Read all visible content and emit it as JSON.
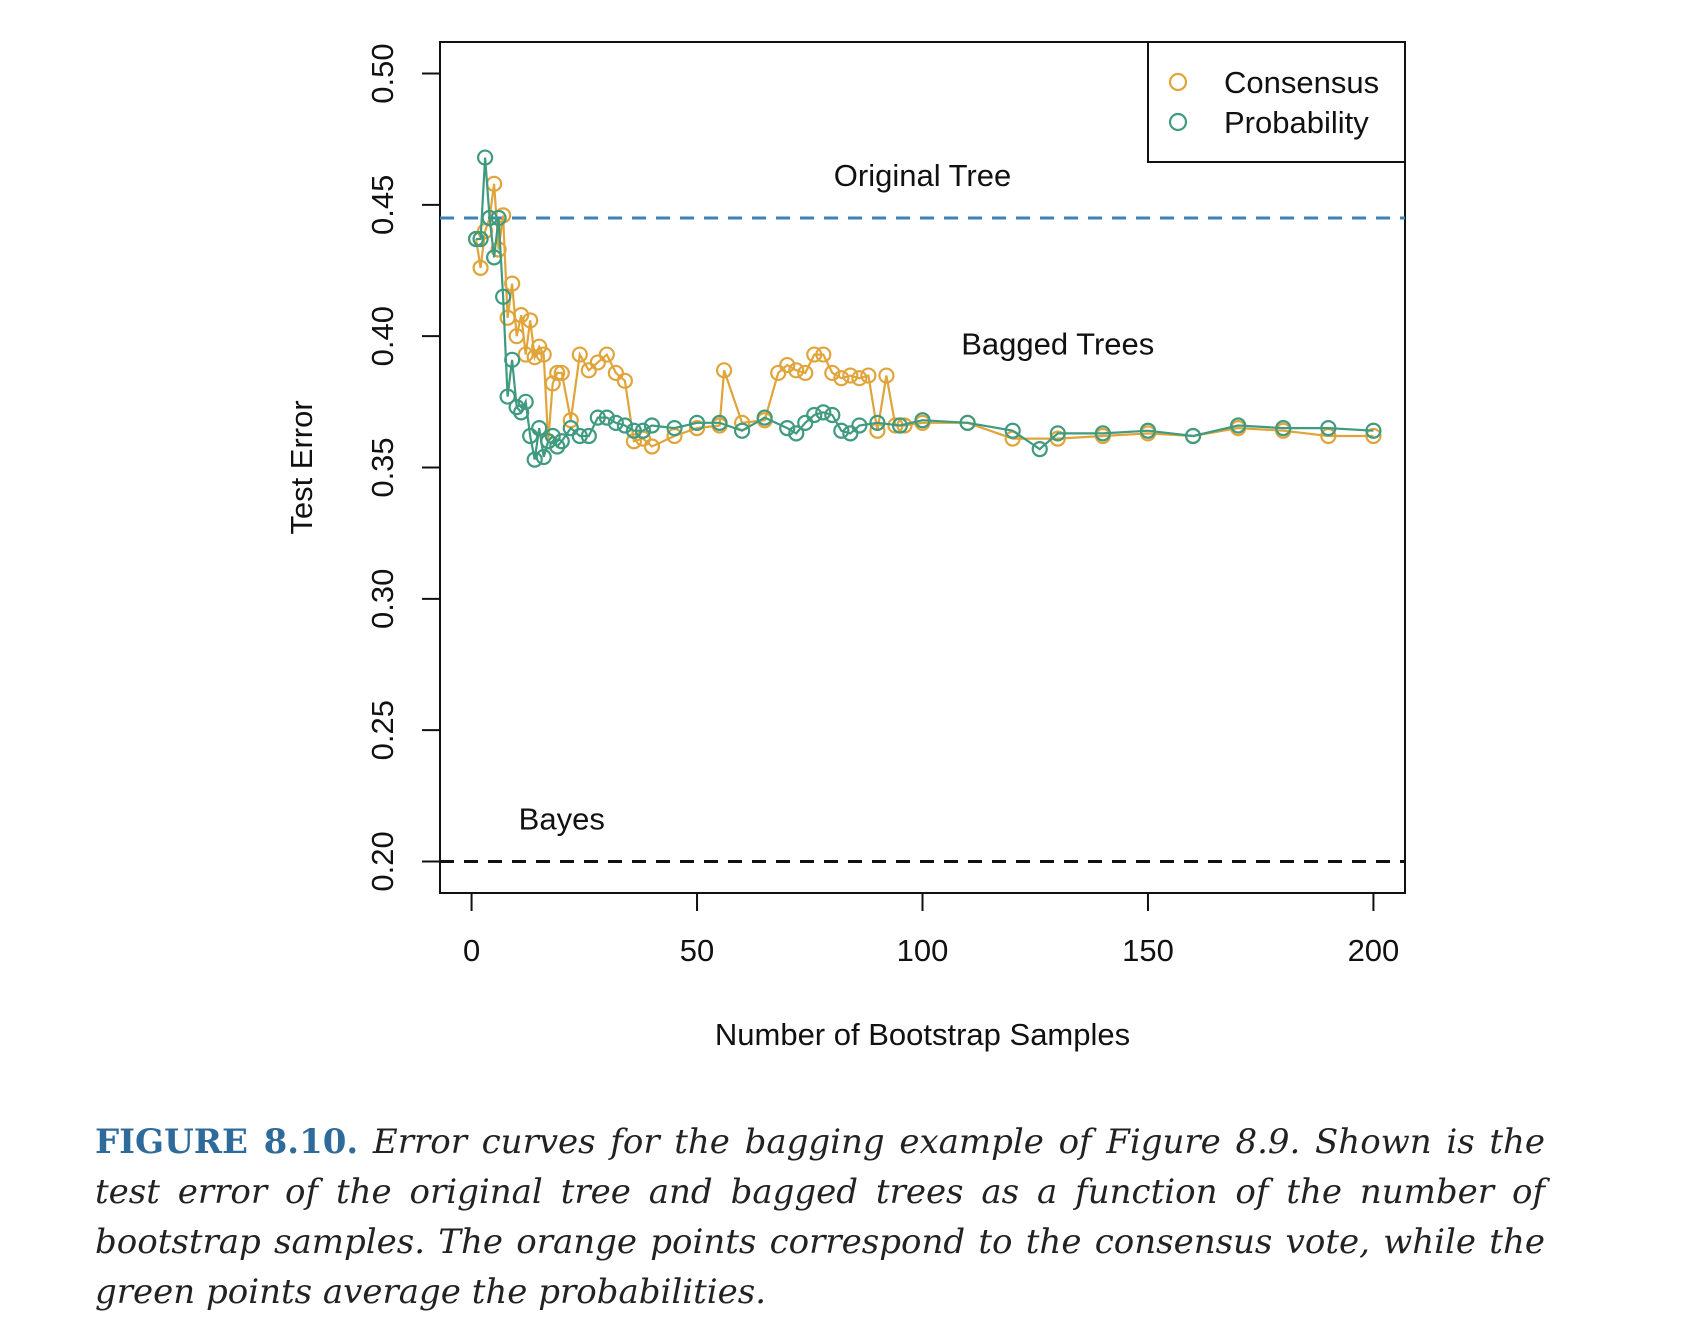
{
  "chart_data": {
    "type": "line",
    "xlabel": "Number of Bootstrap Samples",
    "ylabel": "Test Error",
    "xlim": [
      -7,
      207
    ],
    "ylim": [
      0.188,
      0.512
    ],
    "xticks": [
      0,
      50,
      100,
      150,
      200
    ],
    "xtick_labels": [
      "0",
      "50",
      "100",
      "150",
      "200"
    ],
    "yticks": [
      0.2,
      0.25,
      0.3,
      0.35,
      0.4,
      0.45,
      0.5
    ],
    "ytick_labels": [
      "0.20",
      "0.25",
      "0.30",
      "0.35",
      "0.40",
      "0.45",
      "0.50"
    ],
    "grid": false,
    "legend_position": "top-right",
    "reference_lines": [
      {
        "label": "Original Tree",
        "y": 0.445,
        "color": "#3b82b8",
        "style": "dashed"
      },
      {
        "label": "Bayes",
        "y": 0.2,
        "color": "#111111",
        "style": "dashed"
      }
    ],
    "annotations": [
      {
        "text": "Bagged Trees",
        "x": 130,
        "y": 0.393
      }
    ],
    "series": [
      {
        "name": "Consensus",
        "color": "#e0a43a",
        "x": [
          1,
          2,
          3,
          4,
          5,
          6,
          7,
          8,
          9,
          10,
          11,
          12,
          13,
          14,
          15,
          16,
          17,
          18,
          19,
          20,
          22,
          24,
          26,
          28,
          30,
          32,
          34,
          36,
          38,
          40,
          45,
          50,
          55,
          56,
          60,
          65,
          68,
          70,
          72,
          74,
          76,
          78,
          80,
          82,
          84,
          86,
          88,
          90,
          92,
          94,
          96,
          100,
          110,
          120,
          130,
          140,
          150,
          160,
          170,
          180,
          190,
          200
        ],
        "y": [
          0.437,
          0.426,
          0.44,
          0.445,
          0.458,
          0.433,
          0.446,
          0.407,
          0.42,
          0.4,
          0.408,
          0.393,
          0.406,
          0.392,
          0.396,
          0.393,
          0.36,
          0.382,
          0.386,
          0.386,
          0.368,
          0.393,
          0.387,
          0.39,
          0.393,
          0.386,
          0.383,
          0.36,
          0.361,
          0.358,
          0.362,
          0.365,
          0.366,
          0.387,
          0.367,
          0.368,
          0.386,
          0.389,
          0.387,
          0.386,
          0.393,
          0.393,
          0.386,
          0.384,
          0.385,
          0.384,
          0.385,
          0.364,
          0.385,
          0.366,
          0.366,
          0.367,
          0.367,
          0.361,
          0.361,
          0.362,
          0.363,
          0.362,
          0.365,
          0.364,
          0.362,
          0.362
        ]
      },
      {
        "name": "Probability",
        "color": "#3f9a7f",
        "x": [
          1,
          2,
          3,
          4,
          5,
          6,
          7,
          8,
          9,
          10,
          11,
          12,
          13,
          14,
          15,
          16,
          17,
          18,
          19,
          20,
          22,
          24,
          26,
          28,
          30,
          32,
          34,
          36,
          38,
          40,
          45,
          50,
          55,
          60,
          65,
          70,
          72,
          74,
          76,
          78,
          80,
          82,
          84,
          86,
          90,
          95,
          100,
          110,
          120,
          126,
          130,
          140,
          150,
          160,
          170,
          180,
          190,
          200
        ],
        "y": [
          0.437,
          0.437,
          0.468,
          0.445,
          0.43,
          0.445,
          0.415,
          0.377,
          0.391,
          0.373,
          0.371,
          0.375,
          0.362,
          0.353,
          0.365,
          0.354,
          0.36,
          0.362,
          0.358,
          0.36,
          0.365,
          0.362,
          0.362,
          0.369,
          0.369,
          0.367,
          0.366,
          0.364,
          0.364,
          0.366,
          0.365,
          0.367,
          0.367,
          0.364,
          0.369,
          0.365,
          0.363,
          0.367,
          0.37,
          0.371,
          0.37,
          0.364,
          0.363,
          0.366,
          0.367,
          0.366,
          0.368,
          0.367,
          0.364,
          0.357,
          0.363,
          0.363,
          0.364,
          0.362,
          0.366,
          0.365,
          0.365,
          0.364
        ]
      }
    ]
  },
  "caption": {
    "label": "FIGURE 8.10.",
    "text": "Error curves for the bagging example of Figure 8.9. Shown is the test error of the original tree and bagged trees as a function of the number of bootstrap samples. The orange points correspond to the consensus vote, while the green points average the probabilities."
  }
}
